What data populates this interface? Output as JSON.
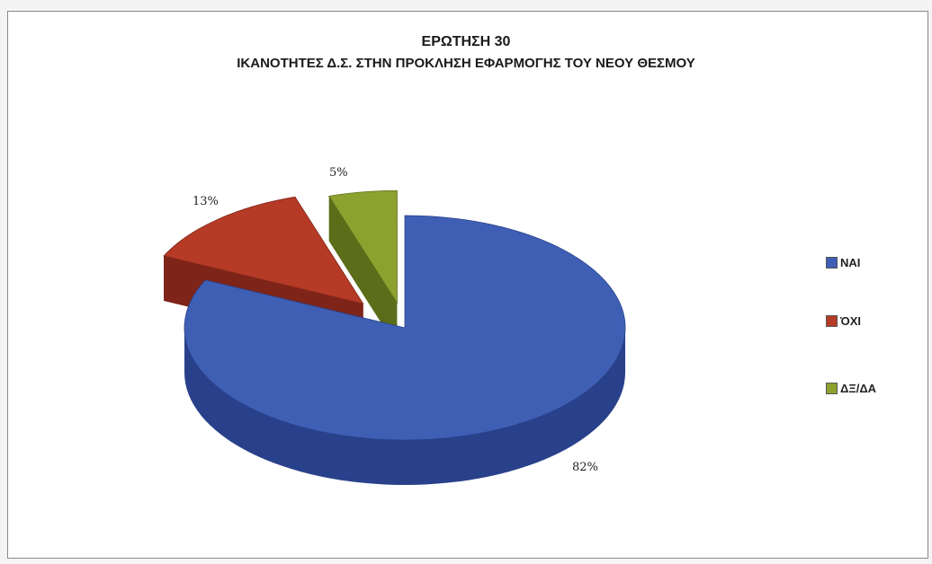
{
  "chart_data": {
    "type": "pie",
    "title": "ΕΡΩΤΗΣΗ 30",
    "subtitle": "ΙΚΑΝΟΤΗΤΕΣ Δ.Σ. ΣΤΗΝ ΠΡΟΚΛΗΣΗ ΕΦΑΡΜΟΓΗΣ ΤΟΥ ΝΕΟΥ ΘΕΣΜΟΥ",
    "legend_position": "right",
    "slices": [
      {
        "label": "ΝΑΙ",
        "value": 82,
        "display": "82%",
        "color": "#3f5fb5",
        "side": "#28418a"
      },
      {
        "label": "ΌΧΙ",
        "value": 13,
        "display": "13%",
        "color": "#b53b27",
        "side": "#7e2418"
      },
      {
        "label": "ΔΞ/ΔΑ",
        "value": 5,
        "display": "5%",
        "color": "#8da12f",
        "side": "#5c6d1a"
      }
    ]
  }
}
